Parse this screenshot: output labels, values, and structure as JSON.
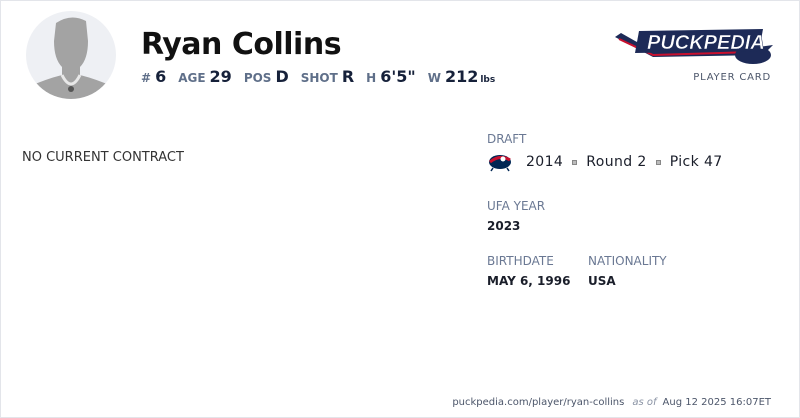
{
  "player": {
    "name": "Ryan Collins",
    "number_label": "#",
    "number": "6",
    "age_label": "AGE",
    "age": "29",
    "pos_label": "POS",
    "pos": "D",
    "shot_label": "SHOT",
    "shot": "R",
    "height_label": "H",
    "height": "6'5\"",
    "weight_label": "W",
    "weight": "212",
    "weight_unit": "lbs"
  },
  "brand": {
    "logo_text": "PuckPedia",
    "subtitle": "PLAYER CARD"
  },
  "contract": {
    "status": "NO CURRENT CONTRACT"
  },
  "draft": {
    "label": "DRAFT",
    "year": "2014",
    "round": "Round 2",
    "pick": "Pick 47",
    "team_icon": "columbus-blue-jackets-logo"
  },
  "ufa": {
    "label": "UFA YEAR",
    "value": "2023"
  },
  "birthdate": {
    "label": "BIRTHDATE",
    "value": "MAY 6, 1996"
  },
  "nationality": {
    "label": "NATIONALITY",
    "value": "USA"
  },
  "footer": {
    "url": "puckpedia.com/player/ryan-collins",
    "as_of": "as of",
    "timestamp": "Aug 12 2025 16:07ET"
  },
  "colors": {
    "navy": "#16213a",
    "label": "#5f6f89",
    "red": "#c8102e"
  }
}
